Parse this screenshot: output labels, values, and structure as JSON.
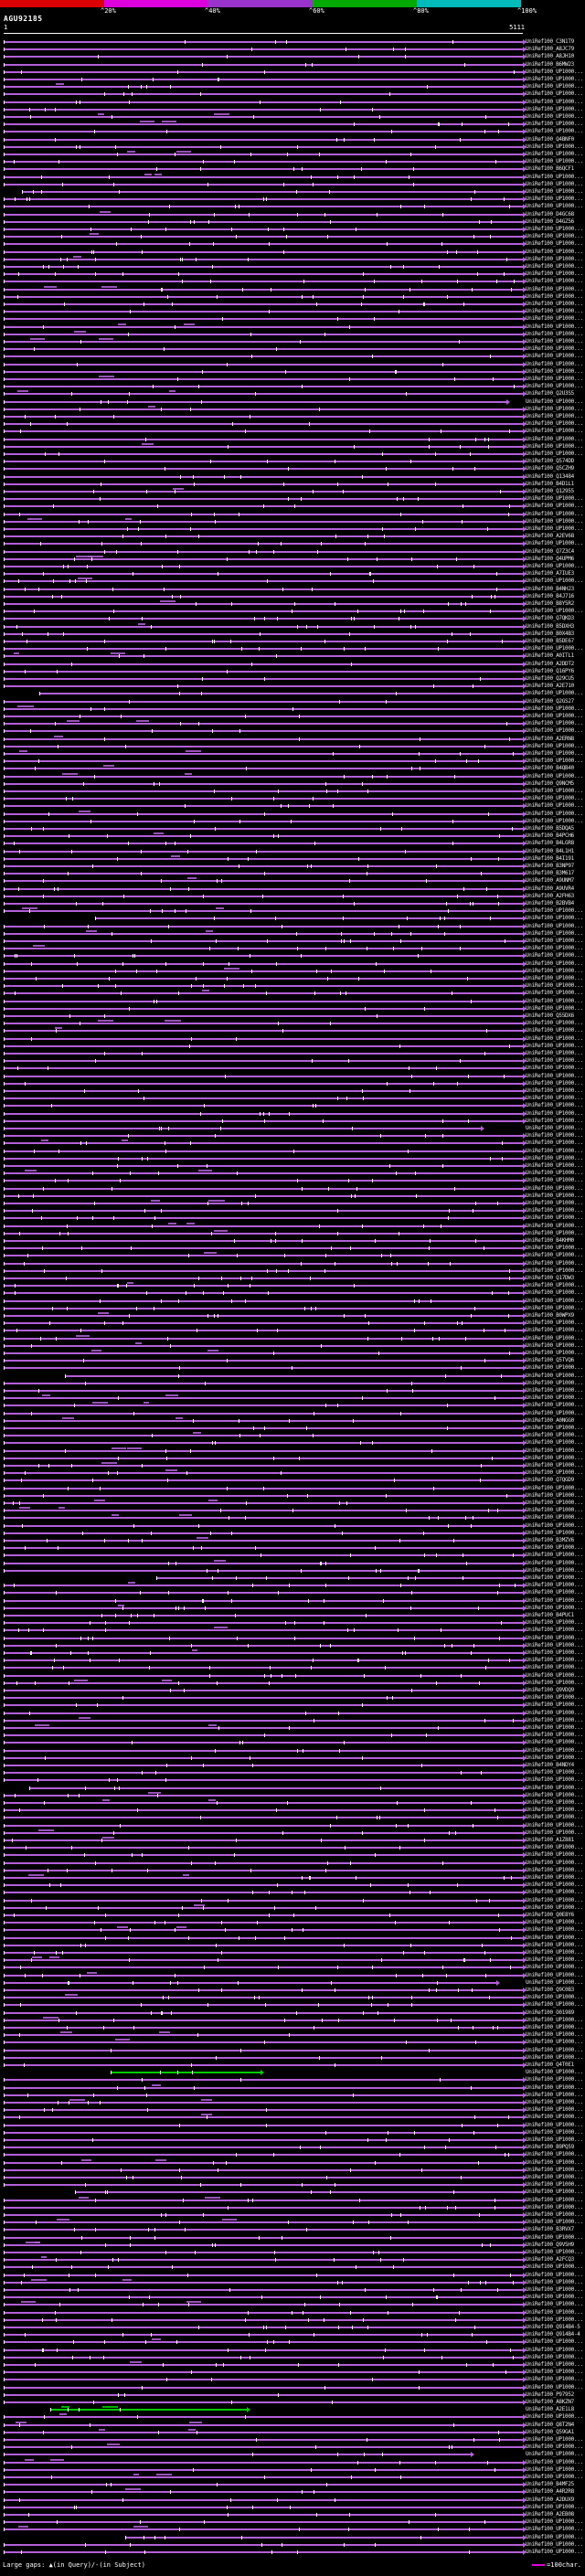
{
  "chart_data": {
    "type": "bar",
    "orientation": "horizontal",
    "title": "AGU92185",
    "query_name": "AGU92185",
    "query_length": 5111,
    "xlim": [
      1,
      5111
    ],
    "ruler": {
      "start_label": "1",
      "end_label": "5111"
    },
    "identity_key": {
      "caret": "^",
      "labels": [
        "20%",
        "40%",
        "60%",
        "80%",
        "100%"
      ],
      "colors": [
        "#dd0000",
        "#dd00dd",
        "#9933cc",
        "#00aa00",
        "#00bbbb"
      ]
    },
    "colors": {
      "background": "#000000",
      "text": "#ffffff",
      "bar_purple": "#b45fd9",
      "bar_green": "#00cc00",
      "tick": "#ffffff",
      "label": "#e6e6e6",
      "legend_sample": "#dd00dd"
    },
    "legend": {
      "large_gaps": "Large gaps: ▲(in Query)/-(in Subject)",
      "scale_text": "=100char."
    },
    "label_runs": [
      [
        "UniRef100_C3N1T9",
        1
      ],
      [
        "UniRef100_A8JC79",
        1
      ],
      [
        "UniRef100_A8JH10",
        1
      ],
      [
        "UniRef100_B6MW23",
        1
      ],
      [
        "UniRef100_UP1000...",
        9
      ],
      [
        "UniRef100_Q4BNF0",
        1
      ],
      [
        "UniRef100_UP1000...",
        3
      ],
      [
        "UniRef100_B6QCF1",
        1
      ],
      [
        "UniRef100_UP1000...",
        5
      ],
      [
        "UniRef100_D4GC68",
        1
      ],
      [
        "UniRef100_D4GZ56",
        1
      ],
      [
        "UniRef100_UP1000...",
        22
      ],
      [
        "UniRef100_Q2U3S5",
        1
      ],
      [
        "UniRef100_UP1000...",
        8
      ],
      [
        "UniRef100_Q574DD",
        1
      ],
      [
        "UniRef100_Q5CZH9",
        1
      ],
      [
        "UniRef100_Q13484",
        1
      ],
      [
        "UniRef100_B4D1L1",
        1
      ],
      [
        "UniRef100_Q12955",
        1
      ],
      [
        "UniRef100_UP1000...",
        5
      ],
      [
        "UniRef100_A2EV68",
        1
      ],
      [
        "UniRef100_UP1000...",
        1
      ],
      [
        "UniRef100_Q7Z3C4",
        1
      ],
      [
        "UniRef100_Q4UPM6",
        1
      ],
      [
        "UniRef100_UP1000...",
        1
      ],
      [
        "UniRef100_A7IUE3",
        1
      ],
      [
        "UniRef100_UP1000...",
        1
      ],
      [
        "UniRef100_B4NHJ3",
        1
      ],
      [
        "UniRef100_B4J716",
        1
      ],
      [
        "UniRef100_B8Y5R2",
        1
      ],
      [
        "UniRef100_UP1000...",
        1
      ],
      [
        "UniRef100_Q7QKD3",
        1
      ],
      [
        "UniRef100_B5DXH3",
        1
      ],
      [
        "UniRef100_B0X4B3",
        1
      ],
      [
        "UniRef100_B5DE67",
        1
      ],
      [
        "UniRef100_UP1000...",
        1
      ],
      [
        "UniRef100_A0ITL1",
        1
      ],
      [
        "UniRef100_A2DDT2",
        1
      ],
      [
        "UniRef100_Q16PY6",
        1
      ],
      [
        "UniRef100_Q29CU5",
        1
      ],
      [
        "UniRef100_A2E710",
        1
      ],
      [
        "UniRef100_UP1000...",
        1
      ],
      [
        "UniRef100_Q2GS27",
        1
      ],
      [
        "UniRef100_UP1000...",
        4
      ],
      [
        "UniRef100_A2ERN8",
        1
      ],
      [
        "UniRef100_UP1000...",
        3
      ],
      [
        "UniRef100_B4QB40",
        1
      ],
      [
        "UniRef100_UP1000...",
        1
      ],
      [
        "UniRef100_Q9NCM5",
        1
      ],
      [
        "UniRef100_UP1000...",
        5
      ],
      [
        "UniRef100_B5DQA5",
        1
      ],
      [
        "UniRef100_B4PCH6",
        1
      ],
      [
        "UniRef100_B4LGR8",
        1
      ],
      [
        "UniRef100_B4L1H1",
        1
      ],
      [
        "UniRef100_B4I191",
        1
      ],
      [
        "UniRef100_B3NP97",
        1
      ],
      [
        "UniRef100_B3M617",
        1
      ],
      [
        "UniRef100_A9UNM7",
        1
      ],
      [
        "UniRef100_A9UVR4",
        1
      ],
      [
        "UniRef100_A2FH63",
        1
      ],
      [
        "UniRef100_B2BVB4",
        1
      ],
      [
        "UniRef100_UP1000...",
        14
      ],
      [
        "UniRef100_Q55DX6",
        1
      ],
      [
        "UniRef100_UP1000...",
        29
      ],
      [
        "UniRef100_B4KHM0",
        1
      ],
      [
        "UniRef100_UP1000...",
        4
      ],
      [
        "UniRef100_Q17DW3",
        1
      ],
      [
        "UniRef100_UP1000...",
        4
      ],
      [
        "UniRef100_B0WPX9",
        1
      ],
      [
        "UniRef100_UP1000...",
        5
      ],
      [
        "UniRef100_Q5TVQ6",
        1
      ],
      [
        "UniRef100_UP1000...",
        7
      ],
      [
        "UniRef100_A0NGG0",
        1
      ],
      [
        "UniRef100_UP1000...",
        7
      ],
      [
        "UniRef100_Q7QGD9",
        1
      ],
      [
        "UniRef100_UP1000...",
        7
      ],
      [
        "UniRef100_B3MZV6",
        1
      ],
      [
        "UniRef100_UP1000...",
        9
      ],
      [
        "UniRef100_B4PUC1",
        1
      ],
      [
        "UniRef100_UP1000...",
        9
      ],
      [
        "UniRef100_Q9VDQ9",
        1
      ],
      [
        "UniRef100_UP1000...",
        9
      ],
      [
        "UniRef100_B4NDY4",
        1
      ],
      [
        "UniRef100_UP1000...",
        9
      ],
      [
        "UniRef100_A1Z881",
        1
      ],
      [
        "UniRef100_UP1000...",
        9
      ],
      [
        "UniRef100_Q0E8Y6",
        1
      ],
      [
        "UniRef100_UP1000...",
        9
      ],
      [
        "UniRef100_Q9C0B3",
        1
      ],
      [
        "UniRef100_UP1000...",
        2
      ],
      [
        "UniRef100_O01989",
        1
      ],
      [
        "UniRef100_UP1000...",
        6
      ],
      [
        "UniRef100_Q4T0E1",
        1
      ],
      [
        "UniRef100_UP1000...",
        10
      ],
      [
        "UniRef100_B9PQ59",
        1
      ],
      [
        "UniRef100_UP1000...",
        10
      ],
      [
        "UniRef100_B3RVX7",
        1
      ],
      [
        "UniRef100_UP1000...",
        1
      ],
      [
        "UniRef100_Q9VSH9",
        1
      ],
      [
        "UniRef100_UP1000...",
        1
      ],
      [
        "UniRef100_A2FCQ3",
        1
      ],
      [
        "UniRef100_UP1000...",
        8
      ],
      [
        "UniRef100_Q914B4-5",
        1
      ],
      [
        "UniRef100_Q914B4-4",
        1
      ],
      [
        "UniRef100_UP1000...",
        7
      ],
      [
        "UniRef100_P97952",
        1
      ],
      [
        "UniRef100_A8KZN7",
        1
      ],
      [
        "UniRef100_A2E1L8",
        1
      ],
      [
        "UniRef100_UP1000...",
        1
      ],
      [
        "UniRef100_Q8T2N4",
        1
      ],
      [
        "UniRef100_Q59GA1",
        1
      ],
      [
        "UniRef100_UP1000...",
        6
      ],
      [
        "UniRef100_B4MF25",
        1
      ],
      [
        "UniRef100_A4R2R8",
        1
      ],
      [
        "UniRef100_A2DUX9",
        1
      ],
      [
        "UniRef100_UP1000...",
        1
      ],
      [
        "UniRef100_A2EB08",
        1
      ],
      [
        "UniRef100_UP1000...",
        5
      ]
    ],
    "row_overrides": {
      "20": [
        180,
        5111,
        "p"
      ],
      "48": [
        1,
        4950,
        "p"
      ],
      "87": [
        350,
        5111,
        "p"
      ],
      "117": [
        900,
        5111,
        "p"
      ],
      "145": [
        1,
        4700,
        "p"
      ],
      "178": [
        600,
        5111,
        "p"
      ],
      "205": [
        1500,
        5111,
        "p"
      ],
      "233": [
        250,
        5111,
        "p"
      ],
      "259": [
        1,
        4850,
        "p"
      ],
      "271": [
        1050,
        2530,
        "g"
      ],
      "287": [
        700,
        5111,
        "p"
      ],
      "316": [
        460,
        2390,
        "g"
      ],
      "322": [
        1,
        4600,
        "p"
      ],
      "333": [
        1200,
        5111,
        "p"
      ]
    }
  }
}
